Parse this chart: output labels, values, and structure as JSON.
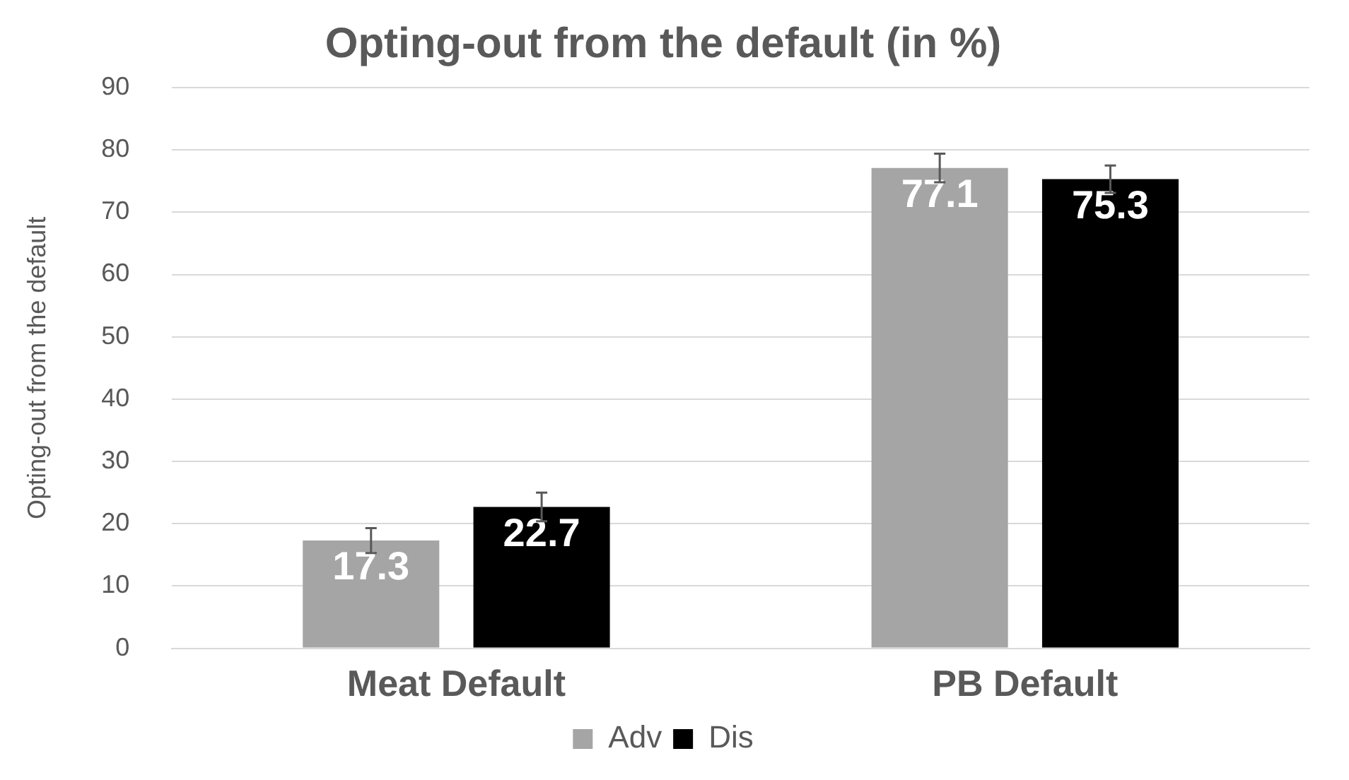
{
  "chart_data": {
    "type": "bar",
    "title": "Opting-out from the default (in %)",
    "ylabel": "Opting-out from the default",
    "categories": [
      "Meat Default",
      "PB Default"
    ],
    "series": [
      {
        "name": "Adv",
        "color": "#a5a5a5",
        "values": [
          17.3,
          77.1
        ],
        "errors": [
          2,
          2.3
        ]
      },
      {
        "name": "Dis",
        "color": "#000000",
        "values": [
          22.7,
          75.3
        ],
        "errors": [
          2.3,
          2.2
        ]
      }
    ],
    "ylim": [
      0,
      90
    ],
    "yticks": [
      0,
      10,
      20,
      30,
      40,
      50,
      60,
      70,
      80,
      90
    ],
    "grid": "y",
    "legend": "bottom",
    "data_labels": true
  }
}
